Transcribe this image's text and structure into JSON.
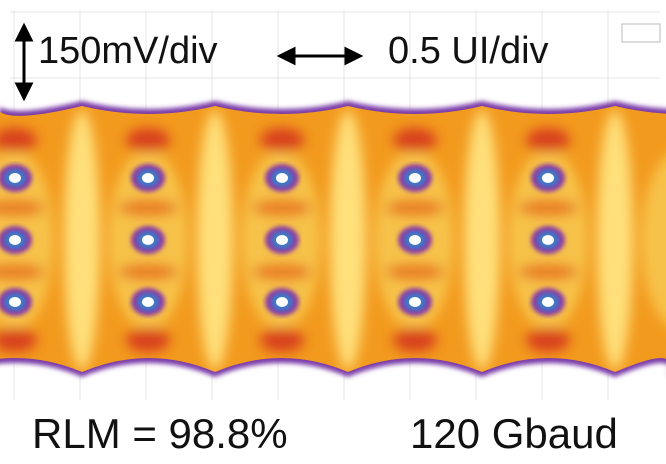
{
  "annotations": {
    "vertical_scale": "150mV/div",
    "horizontal_scale": "0.5 UI/div",
    "rlm": "RLM = 98.8%",
    "baud_rate": "120 Gbaud"
  }
}
